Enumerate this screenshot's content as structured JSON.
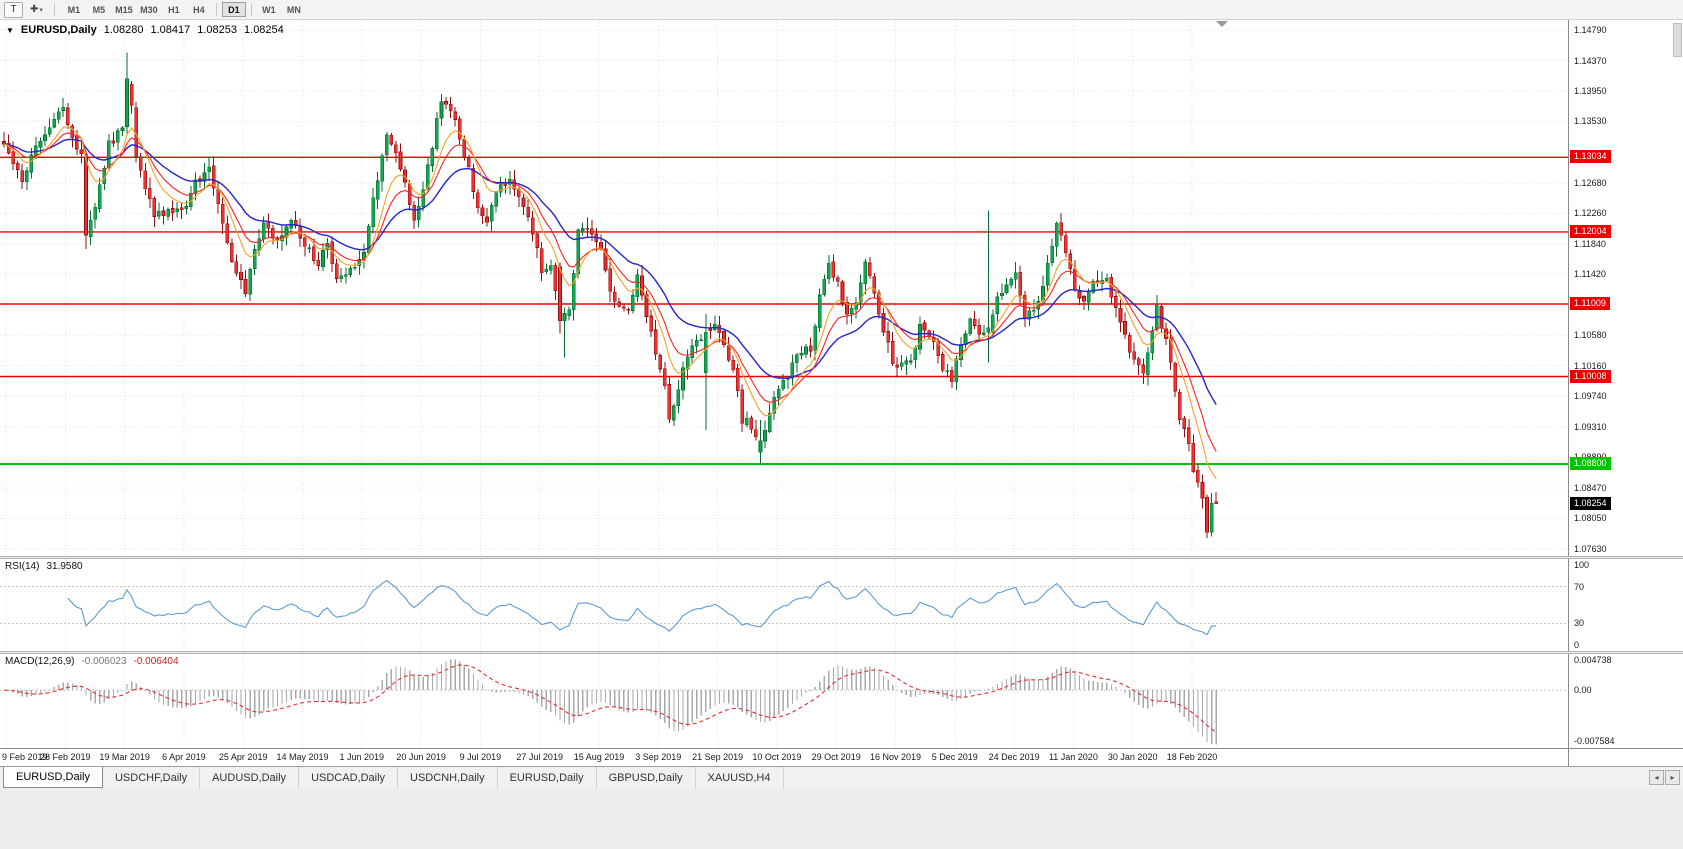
{
  "toolbar": {
    "chart_type_button": "T",
    "cursor_tool_icon": "✚",
    "dropdown_icon": "▾",
    "timeframe_labels": [
      "M1",
      "M5",
      "M15",
      "M30",
      "H1",
      "H4",
      "D1",
      "W1",
      "MN"
    ],
    "active_timeframe": "D1"
  },
  "chart": {
    "header": {
      "menu_icon": "▼",
      "symbol_period": "EURUSD,Daily",
      "open": "1.08280",
      "high": "1.08417",
      "low": "1.08253",
      "close": "1.08254"
    },
    "price_axis_ticks": [
      1.1479,
      1.1437,
      1.1395,
      1.1353,
      1.1268,
      1.1226,
      1.1184,
      1.1142,
      1.1058,
      1.1016,
      1.0974,
      1.0931,
      1.0889,
      1.0847,
      1.0805,
      1.0763
    ],
    "hlines": [
      {
        "price": 1.13034,
        "label": "1.13034",
        "color": "#ee0000",
        "type": "resistance"
      },
      {
        "price": 1.12004,
        "label": "1.12004",
        "color": "#ee0000",
        "type": "resistance"
      },
      {
        "price": 1.11009,
        "label": "1.11009",
        "color": "#ee0000",
        "type": "resistance"
      },
      {
        "price": 1.10008,
        "label": "1.10008",
        "color": "#ee0000",
        "type": "resistance"
      },
      {
        "price": 1.088,
        "label": "1.08800",
        "color": "#00c400",
        "type": "support"
      }
    ],
    "current_price_label": "1.08254",
    "date_labels": [
      "9 Feb 2019",
      "28 Feb 2019",
      "19 Mar 2019",
      "6 Apr 2019",
      "25 Apr 2019",
      "14 May 2019",
      "1 Jun 2019",
      "20 Jun 2019",
      "9 Jul 2019",
      "27 Jul 2019",
      "15 Aug 2019",
      "3 Sep 2019",
      "21 Sep 2019",
      "10 Oct 2019",
      "29 Oct 2019",
      "16 Nov 2019",
      "5 Dec 2019",
      "24 Dec 2019",
      "11 Jan 2020",
      "30 Jan 2020",
      "18 Feb 2020"
    ]
  },
  "rsi": {
    "name": "RSI(14)",
    "value": "31.9580",
    "axis_labels": [
      "100",
      "70",
      "30",
      "0"
    ]
  },
  "macd": {
    "name": "MACD(12,26,9)",
    "value_main": "-0.006023",
    "value_signal": "-0.006404",
    "axis_max_label": "0.004738",
    "axis_zero_label": "0.00",
    "axis_min_label": "-0.007584"
  },
  "tabbar": {
    "scroll_left_icon": "◂",
    "scroll_right_icon": "▸"
  },
  "tabs": [
    "EURUSD,Daily",
    "USDCHF,Daily",
    "AUDUSD,Daily",
    "USDCAD,Daily",
    "USDCNH,Daily",
    "EURUSD,Daily",
    "GBPUSD,Daily",
    "XAUUSD,H4"
  ],
  "active_tab_index": 0,
  "chart_data": {
    "type": "candlestick",
    "symbol": "EURUSD",
    "period": "Daily",
    "num_days": 267,
    "price_axis_range": [
      1.0753,
      1.1493
    ],
    "ohlc_current": [
      1.0828,
      1.08417,
      1.08253,
      1.08254
    ],
    "support_resistance": [
      1.13034,
      1.12004,
      1.11009,
      1.10008,
      1.088
    ],
    "moving_averages": [
      {
        "name": "fast",
        "period": 8,
        "color": "#f0a32a"
      },
      {
        "name": "mid",
        "period": 13,
        "color": "#ff2222"
      },
      {
        "name": "slow",
        "period": 26,
        "color": "#2424cc"
      }
    ],
    "rsi": {
      "period": 14,
      "current": 31.958,
      "scale": [
        0,
        100
      ],
      "levels": [
        70,
        30
      ]
    },
    "macd": {
      "fast": 12,
      "slow": 26,
      "signal": 9,
      "current": -0.006023,
      "signal_current": -0.006404,
      "scale": [
        -0.007584,
        0.004738
      ]
    },
    "colors": {
      "bull": "#0fa84e",
      "bull_edge": "#056b2f",
      "bear": "#f03030",
      "bear_edge": "#8f0f0f",
      "grid": "#e3e3e3",
      "rsi_line": "#5b9bd5",
      "level_dotted": "#c8c8c8",
      "macd_hist": "#a9a9a9",
      "macd_signal": "#e03030"
    },
    "close_waypoints": [
      [
        0,
        1.1325
      ],
      [
        2,
        1.1296
      ],
      [
        4,
        1.1268
      ],
      [
        6,
        1.1302
      ],
      [
        9,
        1.1338
      ],
      [
        13,
        1.1368
      ],
      [
        15,
        1.1332
      ],
      [
        17,
        1.1306
      ],
      [
        18,
        1.1196
      ],
      [
        20,
        1.1232
      ],
      [
        23,
        1.1322
      ],
      [
        26,
        1.1342
      ],
      [
        27,
        1.1412
      ],
      [
        28,
        1.1376
      ],
      [
        29,
        1.1304
      ],
      [
        31,
        1.1262
      ],
      [
        33,
        1.1222
      ],
      [
        36,
        1.1232
      ],
      [
        39,
        1.1226
      ],
      [
        42,
        1.1272
      ],
      [
        45,
        1.1288
      ],
      [
        47,
        1.1242
      ],
      [
        50,
        1.1158
      ],
      [
        53,
        1.1118
      ],
      [
        55,
        1.1176
      ],
      [
        57,
        1.1212
      ],
      [
        60,
        1.1186
      ],
      [
        63,
        1.1214
      ],
      [
        66,
        1.1182
      ],
      [
        69,
        1.1158
      ],
      [
        71,
        1.1186
      ],
      [
        73,
        1.1132
      ],
      [
        76,
        1.1152
      ],
      [
        79,
        1.1168
      ],
      [
        81,
        1.1248
      ],
      [
        84,
        1.1332
      ],
      [
        86,
        1.1308
      ],
      [
        88,
        1.1264
      ],
      [
        90,
        1.1216
      ],
      [
        92,
        1.1254
      ],
      [
        94,
        1.1322
      ],
      [
        96,
        1.1382
      ],
      [
        98,
        1.1372
      ],
      [
        100,
        1.1334
      ],
      [
        102,
        1.1286
      ],
      [
        104,
        1.1228
      ],
      [
        106,
        1.1216
      ],
      [
        108,
        1.1252
      ],
      [
        111,
        1.1278
      ],
      [
        113,
        1.1246
      ],
      [
        115,
        1.1216
      ],
      [
        117,
        1.1182
      ],
      [
        118,
        1.1148
      ],
      [
        120,
        1.1152
      ],
      [
        122,
        1.1078
      ],
      [
        124,
        1.1092
      ],
      [
        126,
        1.1198
      ],
      [
        128,
        1.1202
      ],
      [
        131,
        1.1172
      ],
      [
        133,
        1.1122
      ],
      [
        135,
        1.1098
      ],
      [
        137,
        1.1088
      ],
      [
        139,
        1.1138
      ],
      [
        141,
        1.1082
      ],
      [
        143,
        1.1036
      ],
      [
        145,
        1.0992
      ],
      [
        146,
        1.0936
      ],
      [
        148,
        1.0982
      ],
      [
        150,
        1.1032
      ],
      [
        152,
        1.1046
      ],
      [
        154,
        1.1062
      ],
      [
        156,
        1.1072
      ],
      [
        158,
        1.1042
      ],
      [
        160,
        1.1012
      ],
      [
        162,
        1.0942
      ],
      [
        164,
        1.0932
      ],
      [
        166,
        1.0912
      ],
      [
        167,
        1.0932
      ],
      [
        169,
        1.0972
      ],
      [
        171,
        1.0992
      ],
      [
        174,
        1.1028
      ],
      [
        177,
        1.1042
      ],
      [
        179,
        1.1108
      ],
      [
        181,
        1.1152
      ],
      [
        183,
        1.1128
      ],
      [
        185,
        1.1082
      ],
      [
        187,
        1.1108
      ],
      [
        189,
        1.1162
      ],
      [
        191,
        1.1112
      ],
      [
        193,
        1.1068
      ],
      [
        195,
        1.1022
      ],
      [
        197,
        1.1016
      ],
      [
        199,
        1.1024
      ],
      [
        201,
        1.1068
      ],
      [
        203,
        1.1062
      ],
      [
        206,
        1.1012
      ],
      [
        208,
        1.0998
      ],
      [
        210,
        1.1042
      ],
      [
        212,
        1.1078
      ],
      [
        214,
        1.1058
      ],
      [
        216,
        1.1068
      ],
      [
        218,
        1.1108
      ],
      [
        220,
        1.1122
      ],
      [
        222,
        1.1146
      ],
      [
        224,
        1.1082
      ],
      [
        226,
        1.1092
      ],
      [
        228,
        1.1122
      ],
      [
        230,
        1.1182
      ],
      [
        231,
        1.1212
      ],
      [
        233,
        1.1168
      ],
      [
        235,
        1.1122
      ],
      [
        237,
        1.1108
      ],
      [
        239,
        1.1132
      ],
      [
        242,
        1.1136
      ],
      [
        244,
        1.1092
      ],
      [
        246,
        1.1058
      ],
      [
        248,
        1.1022
      ],
      [
        250,
        1.1006
      ],
      [
        252,
        1.1062
      ],
      [
        253,
        1.1096
      ],
      [
        254,
        1.1072
      ],
      [
        256,
        1.1022
      ],
      [
        257,
        1.0982
      ],
      [
        258,
        1.0946
      ],
      [
        259,
        1.0926
      ],
      [
        260,
        1.0908
      ],
      [
        261,
        1.0872
      ],
      [
        262,
        1.0852
      ],
      [
        263,
        1.0832
      ],
      [
        264,
        1.0786
      ],
      [
        265,
        1.0826
      ],
      [
        266,
        1.08254
      ]
    ],
    "candle_overrides": {
      "18": [
        1.1304,
        1.1312,
        1.1177,
        1.1196
      ],
      "27": [
        1.1346,
        1.1448,
        1.1336,
        1.1412
      ],
      "29": [
        1.1372,
        1.138,
        1.1296,
        1.1304
      ],
      "122": [
        1.1152,
        1.1158,
        1.106,
        1.1078
      ],
      "123": [
        1.1078,
        1.1096,
        1.1027,
        1.1088
      ],
      "154": [
        1.1006,
        1.1087,
        1.0927,
        1.1062
      ],
      "166": [
        1.0896,
        1.0941,
        1.0879,
        1.0912
      ],
      "216": [
        1.1062,
        1.123,
        1.102,
        1.1068
      ],
      "264": [
        1.0834,
        1.0838,
        1.0778,
        1.0786
      ],
      "265": [
        1.0786,
        1.084,
        1.078,
        1.0826
      ],
      "266": [
        1.0828,
        1.08417,
        1.08253,
        1.08254
      ]
    }
  }
}
